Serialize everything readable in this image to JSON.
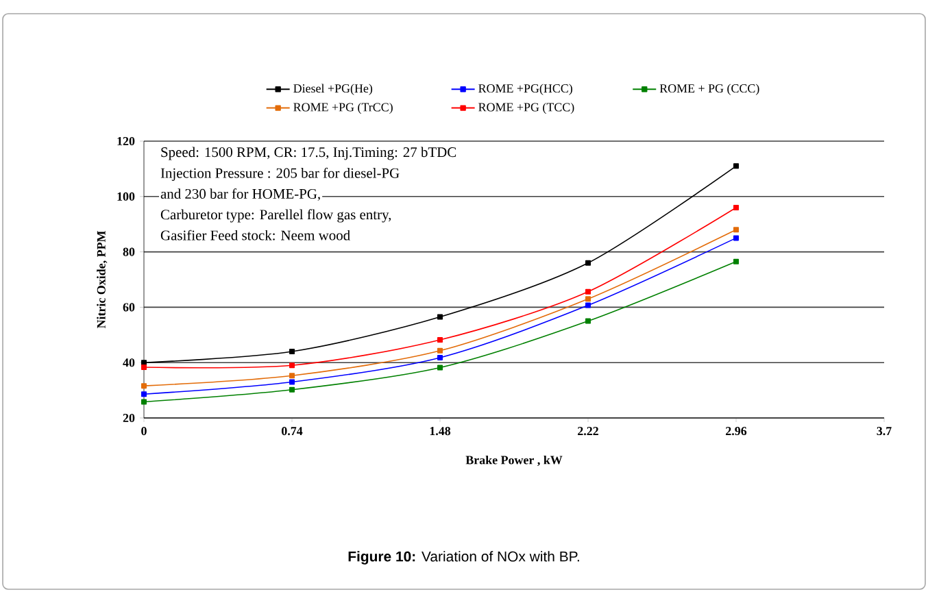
{
  "chart_data": {
    "type": "line",
    "xlabel": "Brake Power ,  kW",
    "ylabel": "Nitric Oxide,  PPM",
    "x": [
      0,
      0.74,
      1.48,
      2.22,
      2.96
    ],
    "xlim": [
      0,
      3.7
    ],
    "xticks": [
      0,
      0.74,
      1.48,
      2.22,
      2.96,
      3.7
    ],
    "ylim": [
      20,
      120
    ],
    "yticks": [
      20,
      40,
      60,
      80,
      100,
      120
    ],
    "grid": "y",
    "legend": "top",
    "marker": "square",
    "line_style": "solid",
    "series": [
      {
        "name": "Diesel +PG(He)",
        "color": "#000000",
        "values": [
          40,
          44,
          56.5,
          76,
          111
        ]
      },
      {
        "name": "ROME +PG(HCC)",
        "color": "#0000ff",
        "values": [
          28.6,
          33,
          41.8,
          60.7,
          85
        ]
      },
      {
        "name": "ROME + PG (CCC)",
        "color": "#008000",
        "values": [
          25.8,
          30.2,
          38.2,
          55,
          76.5
        ]
      },
      {
        "name": "ROME +PG (TrCC)",
        "color": "#e36c09",
        "values": [
          31.6,
          35.3,
          44.3,
          63,
          88
        ]
      },
      {
        "name": "ROME +PG (TCC)",
        "color": "#ff0000",
        "values": [
          38.3,
          39,
          48.2,
          65.6,
          96
        ]
      }
    ],
    "annotations": [
      "Speed: 1500 RPM, CR: 17.5, Inj.Timing: 27 bTDC",
      "Injection Pressure : 205 bar for diesel-PG",
      "and 230 bar for HOME-PG,",
      "Carburetor type: Parellel flow gas entry,",
      "Gasifier Feed stock: Neem wood",
      "**Figure 10:** Variation of NOx with BP."
    ]
  }
}
